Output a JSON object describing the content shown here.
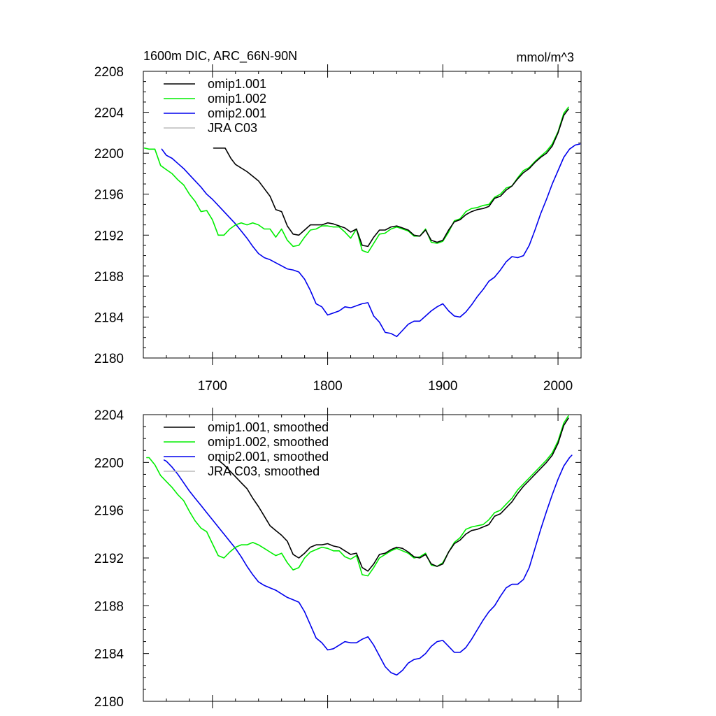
{
  "chart_data": [
    {
      "type": "line",
      "title": "1600m DIC, ARC_66N-90N",
      "units": "mmol/m^3",
      "xlabel": "",
      "ylabel": "",
      "xlim": [
        1640,
        2020
      ],
      "ylim": [
        2180,
        2208
      ],
      "xticks": [
        1700,
        1800,
        1900,
        2000
      ],
      "yticks": [
        2180,
        2184,
        2188,
        2192,
        2196,
        2200,
        2204,
        2208
      ],
      "legend_position": "top-left",
      "series": [
        {
          "name": "omip1.001",
          "color": "#000000",
          "x": [
            1701,
            1711,
            1716,
            1720,
            1730,
            1740,
            1750,
            1755,
            1760,
            1765,
            1770,
            1775,
            1780,
            1785,
            1790,
            1795,
            1800,
            1805,
            1810,
            1815,
            1820,
            1825,
            1830,
            1835,
            1840,
            1845,
            1850,
            1855,
            1860,
            1865,
            1870,
            1875,
            1880,
            1885,
            1890,
            1895,
            1900,
            1905,
            1910,
            1915,
            1920,
            1925,
            1930,
            1935,
            1940,
            1945,
            1950,
            1955,
            1960,
            1965,
            1970,
            1975,
            1980,
            1985,
            1990,
            1995,
            2000,
            2005,
            2009
          ],
          "y": [
            2200.5,
            2200.5,
            2199.5,
            2198.9,
            2198.2,
            2197.3,
            2195.8,
            2194.5,
            2194.3,
            2192.9,
            2192.1,
            2192.0,
            2192.5,
            2193.0,
            2193.0,
            2193.0,
            2193.2,
            2193.1,
            2192.9,
            2192.7,
            2192.3,
            2192.6,
            2191.0,
            2190.9,
            2191.8,
            2192.5,
            2192.5,
            2192.8,
            2192.9,
            2192.7,
            2192.5,
            2192.0,
            2191.9,
            2192.5,
            2191.5,
            2191.3,
            2191.5,
            2192.5,
            2193.3,
            2193.5,
            2194.0,
            2194.3,
            2194.5,
            2194.6,
            2194.8,
            2195.6,
            2195.8,
            2196.4,
            2196.8,
            2197.5,
            2198.1,
            2198.5,
            2199.1,
            2199.6,
            2200.0,
            2200.7,
            2202.0,
            2203.7,
            2204.3
          ]
        },
        {
          "name": "omip1.002",
          "color": "#00ee00",
          "x": [
            1641,
            1645,
            1650,
            1655,
            1660,
            1665,
            1670,
            1675,
            1680,
            1685,
            1690,
            1695,
            1700,
            1705,
            1710,
            1715,
            1720,
            1725,
            1730,
            1735,
            1740,
            1745,
            1750,
            1755,
            1760,
            1765,
            1770,
            1775,
            1780,
            1785,
            1790,
            1795,
            1800,
            1805,
            1810,
            1815,
            1820,
            1825,
            1830,
            1835,
            1840,
            1845,
            1850,
            1855,
            1860,
            1865,
            1870,
            1875,
            1880,
            1885,
            1890,
            1895,
            1900,
            1905,
            1910,
            1915,
            1920,
            1925,
            1930,
            1935,
            1940,
            1945,
            1950,
            1955,
            1960,
            1965,
            1970,
            1975,
            1980,
            1985,
            1990,
            1995,
            2000,
            2005,
            2009
          ],
          "y": [
            2200.5,
            2200.4,
            2200.4,
            2198.8,
            2198.4,
            2198.0,
            2197.4,
            2196.9,
            2196.0,
            2195.3,
            2194.3,
            2194.4,
            2193.5,
            2192.0,
            2192.0,
            2192.6,
            2193.0,
            2193.2,
            2193.0,
            2193.2,
            2193.0,
            2192.6,
            2192.6,
            2191.8,
            2192.6,
            2191.5,
            2190.9,
            2191.0,
            2191.8,
            2192.5,
            2192.6,
            2192.9,
            2192.9,
            2192.8,
            2192.8,
            2192.3,
            2191.7,
            2192.6,
            2190.5,
            2190.3,
            2191.2,
            2192.1,
            2192.2,
            2192.6,
            2192.8,
            2192.6,
            2192.4,
            2191.9,
            2191.9,
            2192.6,
            2191.3,
            2191.2,
            2191.4,
            2192.3,
            2193.4,
            2193.6,
            2194.3,
            2194.6,
            2194.7,
            2194.9,
            2195.0,
            2195.7,
            2196.0,
            2196.6,
            2196.8,
            2197.6,
            2198.3,
            2198.6,
            2199.2,
            2199.7,
            2200.2,
            2200.9,
            2202.1,
            2203.9,
            2204.5
          ]
        },
        {
          "name": "omip2.001",
          "color": "#0000ee",
          "x": [
            1656,
            1660,
            1665,
            1670,
            1675,
            1680,
            1685,
            1690,
            1695,
            1700,
            1705,
            1710,
            1715,
            1720,
            1725,
            1730,
            1735,
            1740,
            1745,
            1750,
            1755,
            1760,
            1765,
            1770,
            1775,
            1780,
            1785,
            1790,
            1795,
            1800,
            1805,
            1810,
            1815,
            1820,
            1825,
            1830,
            1835,
            1840,
            1845,
            1850,
            1855,
            1860,
            1865,
            1870,
            1875,
            1880,
            1885,
            1890,
            1895,
            1900,
            1905,
            1910,
            1915,
            1920,
            1925,
            1930,
            1935,
            1940,
            1945,
            1950,
            1955,
            1960,
            1965,
            1970,
            1975,
            1980,
            1985,
            1990,
            1995,
            2000,
            2005,
            2010,
            2015,
            2019
          ],
          "y": [
            2200.4,
            2199.8,
            2199.5,
            2199.0,
            2198.5,
            2197.9,
            2197.3,
            2196.7,
            2196.0,
            2195.5,
            2194.9,
            2194.3,
            2193.7,
            2193.1,
            2192.4,
            2191.7,
            2190.9,
            2190.2,
            2189.8,
            2189.6,
            2189.3,
            2189.0,
            2188.7,
            2188.6,
            2188.4,
            2187.7,
            2186.6,
            2185.3,
            2185.0,
            2184.2,
            2184.4,
            2184.6,
            2185.0,
            2184.9,
            2185.1,
            2185.3,
            2185.4,
            2184.1,
            2183.5,
            2182.5,
            2182.4,
            2182.1,
            2182.7,
            2183.3,
            2183.6,
            2183.6,
            2184.1,
            2184.6,
            2185.0,
            2185.3,
            2184.6,
            2184.1,
            2184.0,
            2184.5,
            2185.2,
            2186.0,
            2186.7,
            2187.5,
            2187.9,
            2188.6,
            2189.4,
            2189.9,
            2189.8,
            2190.0,
            2191.0,
            2192.5,
            2194.1,
            2195.5,
            2197.0,
            2198.3,
            2199.6,
            2200.4,
            2200.8,
            2200.9
          ]
        },
        {
          "name": "JRA C03",
          "color": "#bbbbbb",
          "x": [],
          "y": []
        }
      ]
    },
    {
      "type": "line",
      "title": "",
      "units": "",
      "xlabel": "",
      "ylabel": "",
      "xlim": [
        1640,
        2020
      ],
      "ylim": [
        2180,
        2204
      ],
      "xticks": [
        1700,
        1800,
        1900,
        2000
      ],
      "yticks": [
        2180,
        2184,
        2188,
        2192,
        2196,
        2200,
        2204
      ],
      "legend_position": "top-left",
      "series": [
        {
          "name": "omip1.001, smoothed",
          "color": "#000000",
          "x": [
            1705,
            1710,
            1715,
            1720,
            1725,
            1730,
            1735,
            1740,
            1745,
            1750,
            1755,
            1760,
            1765,
            1770,
            1775,
            1780,
            1785,
            1790,
            1795,
            1800,
            1805,
            1810,
            1815,
            1820,
            1825,
            1830,
            1835,
            1840,
            1845,
            1850,
            1855,
            1860,
            1865,
            1870,
            1875,
            1880,
            1885,
            1890,
            1895,
            1900,
            1905,
            1910,
            1915,
            1920,
            1925,
            1930,
            1935,
            1940,
            1945,
            1950,
            1955,
            1960,
            1965,
            1970,
            1975,
            1980,
            1985,
            1990,
            1995,
            2000,
            2005,
            2009
          ],
          "y": [
            2200.2,
            2199.8,
            2199.3,
            2198.8,
            2198.3,
            2197.8,
            2197.0,
            2196.3,
            2195.5,
            2194.7,
            2194.3,
            2193.9,
            2193.4,
            2192.3,
            2192.0,
            2192.4,
            2192.9,
            2193.1,
            2193.1,
            2193.2,
            2193.0,
            2192.9,
            2192.6,
            2192.3,
            2192.4,
            2191.2,
            2190.9,
            2191.5,
            2192.3,
            2192.4,
            2192.7,
            2192.9,
            2192.8,
            2192.5,
            2192.1,
            2192.0,
            2192.3,
            2191.5,
            2191.3,
            2191.5,
            2192.5,
            2193.2,
            2193.5,
            2194.0,
            2194.3,
            2194.4,
            2194.6,
            2194.8,
            2195.5,
            2195.7,
            2196.2,
            2196.7,
            2197.4,
            2198.0,
            2198.5,
            2199.0,
            2199.5,
            2200.0,
            2200.6,
            2201.6,
            2203.1,
            2203.7
          ]
        },
        {
          "name": "omip1.002, smoothed",
          "color": "#00ee00",
          "x": [
            1643,
            1645,
            1650,
            1655,
            1660,
            1665,
            1670,
            1675,
            1680,
            1685,
            1690,
            1695,
            1700,
            1705,
            1710,
            1715,
            1720,
            1725,
            1730,
            1735,
            1740,
            1745,
            1750,
            1755,
            1760,
            1765,
            1770,
            1775,
            1780,
            1785,
            1790,
            1795,
            1800,
            1805,
            1810,
            1815,
            1820,
            1825,
            1830,
            1835,
            1840,
            1845,
            1850,
            1855,
            1860,
            1865,
            1870,
            1875,
            1880,
            1885,
            1890,
            1895,
            1900,
            1905,
            1910,
            1915,
            1920,
            1925,
            1930,
            1935,
            1940,
            1945,
            1950,
            1955,
            1960,
            1965,
            1970,
            1975,
            1980,
            1985,
            1990,
            1995,
            2000,
            2005,
            2009
          ],
          "y": [
            2200.4,
            2200.4,
            2199.8,
            2198.9,
            2198.4,
            2197.9,
            2197.3,
            2196.8,
            2195.9,
            2195.1,
            2194.5,
            2194.2,
            2193.2,
            2192.2,
            2192.0,
            2192.5,
            2192.9,
            2193.1,
            2193.1,
            2193.3,
            2193.1,
            2192.8,
            2192.5,
            2192.2,
            2192.4,
            2191.6,
            2191.0,
            2191.2,
            2192.0,
            2192.5,
            2192.7,
            2192.9,
            2192.8,
            2192.6,
            2192.6,
            2192.1,
            2191.9,
            2192.2,
            2190.6,
            2190.5,
            2191.2,
            2192.0,
            2192.3,
            2192.6,
            2192.8,
            2192.6,
            2192.4,
            2192.0,
            2192.1,
            2192.4,
            2191.4,
            2191.3,
            2191.6,
            2192.5,
            2193.3,
            2193.7,
            2194.4,
            2194.6,
            2194.7,
            2194.8,
            2195.2,
            2195.8,
            2196.0,
            2196.5,
            2197.0,
            2197.7,
            2198.2,
            2198.7,
            2199.2,
            2199.7,
            2200.2,
            2200.8,
            2201.8,
            2203.3,
            2203.9
          ]
        },
        {
          "name": "omip2.001, smoothed",
          "color": "#0000ee",
          "x": [
            1658,
            1660,
            1665,
            1670,
            1675,
            1680,
            1685,
            1690,
            1695,
            1700,
            1705,
            1710,
            1715,
            1720,
            1725,
            1730,
            1735,
            1740,
            1745,
            1750,
            1755,
            1760,
            1765,
            1770,
            1775,
            1780,
            1785,
            1790,
            1795,
            1800,
            1805,
            1810,
            1815,
            1820,
            1825,
            1830,
            1835,
            1840,
            1845,
            1850,
            1855,
            1860,
            1865,
            1870,
            1875,
            1880,
            1885,
            1890,
            1895,
            1900,
            1905,
            1910,
            1915,
            1920,
            1925,
            1930,
            1935,
            1940,
            1945,
            1950,
            1955,
            1960,
            1965,
            1970,
            1975,
            1980,
            1985,
            1990,
            1995,
            2000,
            2005,
            2010,
            2012
          ],
          "y": [
            2200.2,
            2200.1,
            2199.6,
            2199.0,
            2198.3,
            2197.6,
            2197.0,
            2196.4,
            2195.8,
            2195.2,
            2194.6,
            2194.0,
            2193.4,
            2192.8,
            2192.1,
            2191.3,
            2190.6,
            2190.0,
            2189.7,
            2189.5,
            2189.3,
            2189.0,
            2188.7,
            2188.5,
            2188.3,
            2187.5,
            2186.4,
            2185.3,
            2184.9,
            2184.3,
            2184.4,
            2184.7,
            2185.0,
            2184.9,
            2184.9,
            2185.2,
            2185.4,
            2184.7,
            2183.8,
            2182.9,
            2182.4,
            2182.2,
            2182.6,
            2183.2,
            2183.5,
            2183.6,
            2184.0,
            2184.6,
            2185.0,
            2185.1,
            2184.6,
            2184.1,
            2184.1,
            2184.5,
            2185.2,
            2186.0,
            2186.8,
            2187.5,
            2188.0,
            2188.8,
            2189.5,
            2189.8,
            2189.8,
            2190.2,
            2191.2,
            2192.8,
            2194.4,
            2195.9,
            2197.3,
            2198.6,
            2199.7,
            2200.4,
            2200.6
          ]
        },
        {
          "name": "JRA C03, smoothed",
          "color": "#bbbbbb",
          "x": [],
          "y": []
        }
      ]
    }
  ]
}
